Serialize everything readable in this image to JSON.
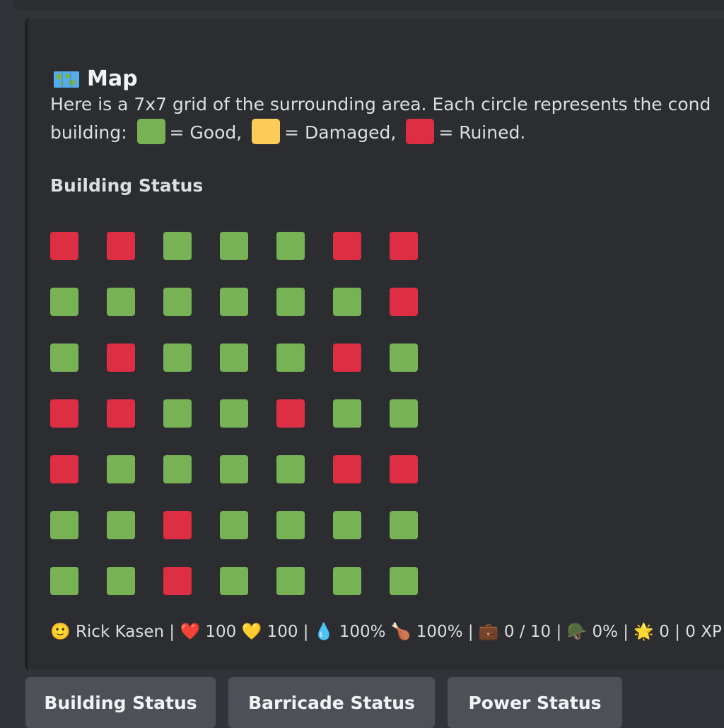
{
  "embed": {
    "title": "Map",
    "description_line1": "Here is a 7x7 grid of the surrounding area. Each circle represents the cond",
    "description_line2_start": "building:",
    "legend": [
      {
        "label": "= Good,",
        "color": "#77b255"
      },
      {
        "label": "= Damaged,",
        "color": "#fdcb58"
      },
      {
        "label": "= Ruined.",
        "color": "#dd2e44"
      }
    ],
    "section_title": "Building Status",
    "grid": [
      [
        "ruined",
        "ruined",
        "good",
        "good",
        "good",
        "ruined",
        "ruined"
      ],
      [
        "good",
        "good",
        "good",
        "good",
        "good",
        "good",
        "ruined"
      ],
      [
        "good",
        "ruined",
        "good",
        "good",
        "good",
        "ruined",
        "good"
      ],
      [
        "ruined",
        "ruined",
        "good",
        "good",
        "ruined",
        "good",
        "good"
      ],
      [
        "ruined",
        "good",
        "good",
        "good",
        "good",
        "ruined",
        "ruined"
      ],
      [
        "good",
        "good",
        "ruined",
        "good",
        "good",
        "good",
        "good"
      ],
      [
        "good",
        "good",
        "ruined",
        "good",
        "good",
        "good",
        "good"
      ]
    ],
    "colors": {
      "good": "#77b255",
      "damaged": "#fdcb58",
      "ruined": "#dd2e44"
    },
    "stats": "🙂 Rick Kasen  |  ❤️ 100  💛 100  |  💧 100% 🍗 100%  |  💼 0 / 10  |  🪖 0% | 🌟 0  |  0 XP"
  },
  "buttons": [
    {
      "label": "Building Status"
    },
    {
      "label": "Barricade Status"
    },
    {
      "label": "Power Status"
    }
  ]
}
